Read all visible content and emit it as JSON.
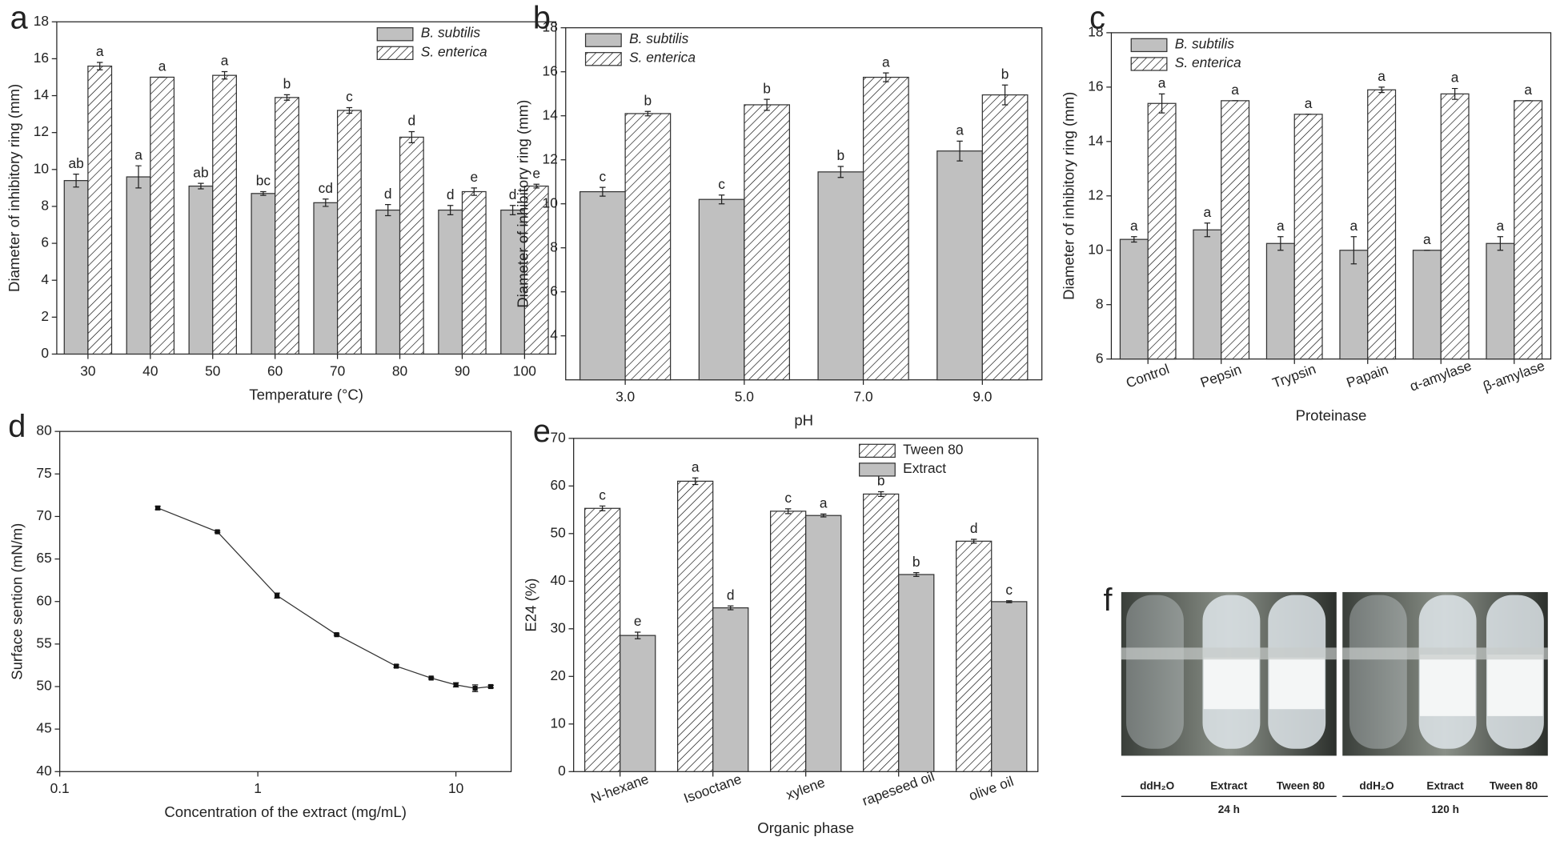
{
  "chart_data": [
    {
      "type": "bar",
      "panel": "a",
      "xlabel": "Temperature (°C)",
      "ylabel": "Diameter of inhibitory ring (mm)",
      "categories": [
        "30",
        "40",
        "50",
        "60",
        "70",
        "80",
        "90",
        "100"
      ],
      "series": [
        {
          "name": "B. subtilis",
          "color": "#c0c0c0",
          "pattern": "solid",
          "values": [
            9.4,
            9.6,
            9.1,
            8.7,
            8.2,
            7.8,
            7.8,
            7.8
          ],
          "errors": [
            0.35,
            0.6,
            0.15,
            0.1,
            0.2,
            0.3,
            0.25,
            0.25
          ],
          "letters": [
            "ab",
            "a",
            "ab",
            "bc",
            "cd",
            "d",
            "d",
            "d"
          ]
        },
        {
          "name": "S. enterica",
          "color": "#000000",
          "pattern": "hatch",
          "values": [
            15.6,
            15.0,
            15.1,
            13.9,
            13.2,
            11.75,
            8.8,
            9.1
          ],
          "errors": [
            0.2,
            0,
            0.2,
            0.15,
            0.15,
            0.3,
            0.2,
            0.1
          ],
          "letters": [
            "a",
            "a",
            "a",
            "b",
            "c",
            "d",
            "e",
            "e"
          ]
        }
      ],
      "ylim": [
        0,
        18
      ],
      "yticks": [
        0,
        2,
        4,
        6,
        8,
        10,
        12,
        14,
        16,
        18
      ],
      "legend": "upper right",
      "legend_font_style": "italic",
      "xtick_rotation": 0
    },
    {
      "type": "bar",
      "panel": "b",
      "xlabel": "pH",
      "ylabel": "Diameter of inhibitory ring (mm)",
      "categories": [
        "3.0",
        "5.0",
        "7.0",
        "9.0"
      ],
      "series": [
        {
          "name": "B. subtilis",
          "color": "#c0c0c0",
          "pattern": "solid",
          "values": [
            10.55,
            10.2,
            11.45,
            12.4
          ],
          "errors": [
            0.2,
            0.2,
            0.25,
            0.45
          ],
          "letters": [
            "c",
            "c",
            "b",
            "a"
          ]
        },
        {
          "name": "S. enterica",
          "color": "#000000",
          "pattern": "hatch",
          "values": [
            14.1,
            14.5,
            15.75,
            14.95
          ],
          "errors": [
            0.1,
            0.25,
            0.2,
            0.45
          ],
          "letters": [
            "b",
            "b",
            "a",
            "b"
          ]
        }
      ],
      "ylim": [
        2,
        18
      ],
      "yticks": [
        4,
        6,
        8,
        10,
        12,
        14,
        16,
        18
      ],
      "legend": "upper left",
      "legend_font_style": "italic",
      "xtick_rotation": 0
    },
    {
      "type": "bar",
      "panel": "c",
      "xlabel": "Proteinase",
      "ylabel": "Diameter of inhibitory ring (mm)",
      "categories": [
        "Control",
        "Pepsin",
        "Trypsin",
        "Papain",
        "α-amylase",
        "β-amylase"
      ],
      "series": [
        {
          "name": "B. subtilis",
          "color": "#c0c0c0",
          "pattern": "solid",
          "values": [
            10.4,
            10.75,
            10.25,
            10.0,
            10.0,
            10.25
          ],
          "errors": [
            0.1,
            0.25,
            0.25,
            0.5,
            0,
            0.25
          ],
          "letters": [
            "a",
            "a",
            "a",
            "a",
            "a",
            "a"
          ]
        },
        {
          "name": "S. enterica",
          "color": "#000000",
          "pattern": "hatch",
          "values": [
            15.4,
            15.5,
            15.0,
            15.9,
            15.75,
            15.5
          ],
          "errors": [
            0.35,
            0,
            0,
            0.1,
            0.2,
            0
          ],
          "letters": [
            "a",
            "a",
            "a",
            "a",
            "a",
            "a"
          ]
        }
      ],
      "ylim": [
        6,
        18
      ],
      "yticks": [
        6,
        8,
        10,
        12,
        14,
        16,
        18
      ],
      "legend": "upper left",
      "legend_font_style": "italic",
      "xtick_rotation": -20
    },
    {
      "type": "line",
      "panel": "d",
      "xlabel": "Concentration of the extract (mg/mL)",
      "ylabel": "Surface sention (mN/m)",
      "x": [
        0.3125,
        0.625,
        1.25,
        2.5,
        5,
        7.5,
        10,
        12.5,
        15
      ],
      "values": [
        71.0,
        68.2,
        60.7,
        56.1,
        52.4,
        51.0,
        50.2,
        49.8,
        50.0
      ],
      "errors": [
        0.2,
        0.1,
        0.3,
        0.1,
        0.15,
        0.1,
        0.25,
        0.4,
        0.15
      ],
      "color": "#333333",
      "log_x": true,
      "xlim": [
        0.1,
        19
      ],
      "xticks": [
        0.1,
        1,
        10
      ],
      "ylim": [
        40,
        80
      ],
      "yticks": [
        40,
        45,
        50,
        55,
        60,
        65,
        70,
        75,
        80
      ]
    },
    {
      "type": "bar",
      "panel": "e",
      "xlabel": "Organic phase",
      "ylabel": "E24 (%)",
      "categories": [
        "N-hexane",
        "Isooctane",
        "xylene",
        "rapeseed oil",
        "olive oil"
      ],
      "series": [
        {
          "name": "Tween 80",
          "color": "#000000",
          "pattern": "hatch",
          "values": [
            55.3,
            61.0,
            54.7,
            58.3,
            48.4
          ],
          "errors": [
            0.5,
            0.7,
            0.5,
            0.5,
            0.4
          ],
          "letters": [
            "c",
            "a",
            "c",
            "b",
            "d"
          ]
        },
        {
          "name": "Extract",
          "color": "#c0c0c0",
          "pattern": "solid",
          "values": [
            28.6,
            34.4,
            53.8,
            41.4,
            35.7
          ],
          "errors": [
            0.7,
            0.4,
            0.3,
            0.4,
            0.2
          ],
          "letters": [
            "e",
            "d",
            "a",
            "b",
            "c"
          ]
        }
      ],
      "ylim": [
        0,
        70
      ],
      "yticks": [
        0,
        10,
        20,
        30,
        40,
        50,
        60,
        70
      ],
      "legend": "upper right",
      "legend_font_style": "normal",
      "xtick_rotation": -20
    },
    {
      "type": "image",
      "panel": "f",
      "groups": [
        {
          "caption": "24 h",
          "labels": [
            "ddH₂O",
            "Extract",
            "Tween 80"
          ]
        },
        {
          "caption": "120 h",
          "labels": [
            "ddH₂O",
            "Extract",
            "Tween 80"
          ]
        }
      ]
    }
  ]
}
